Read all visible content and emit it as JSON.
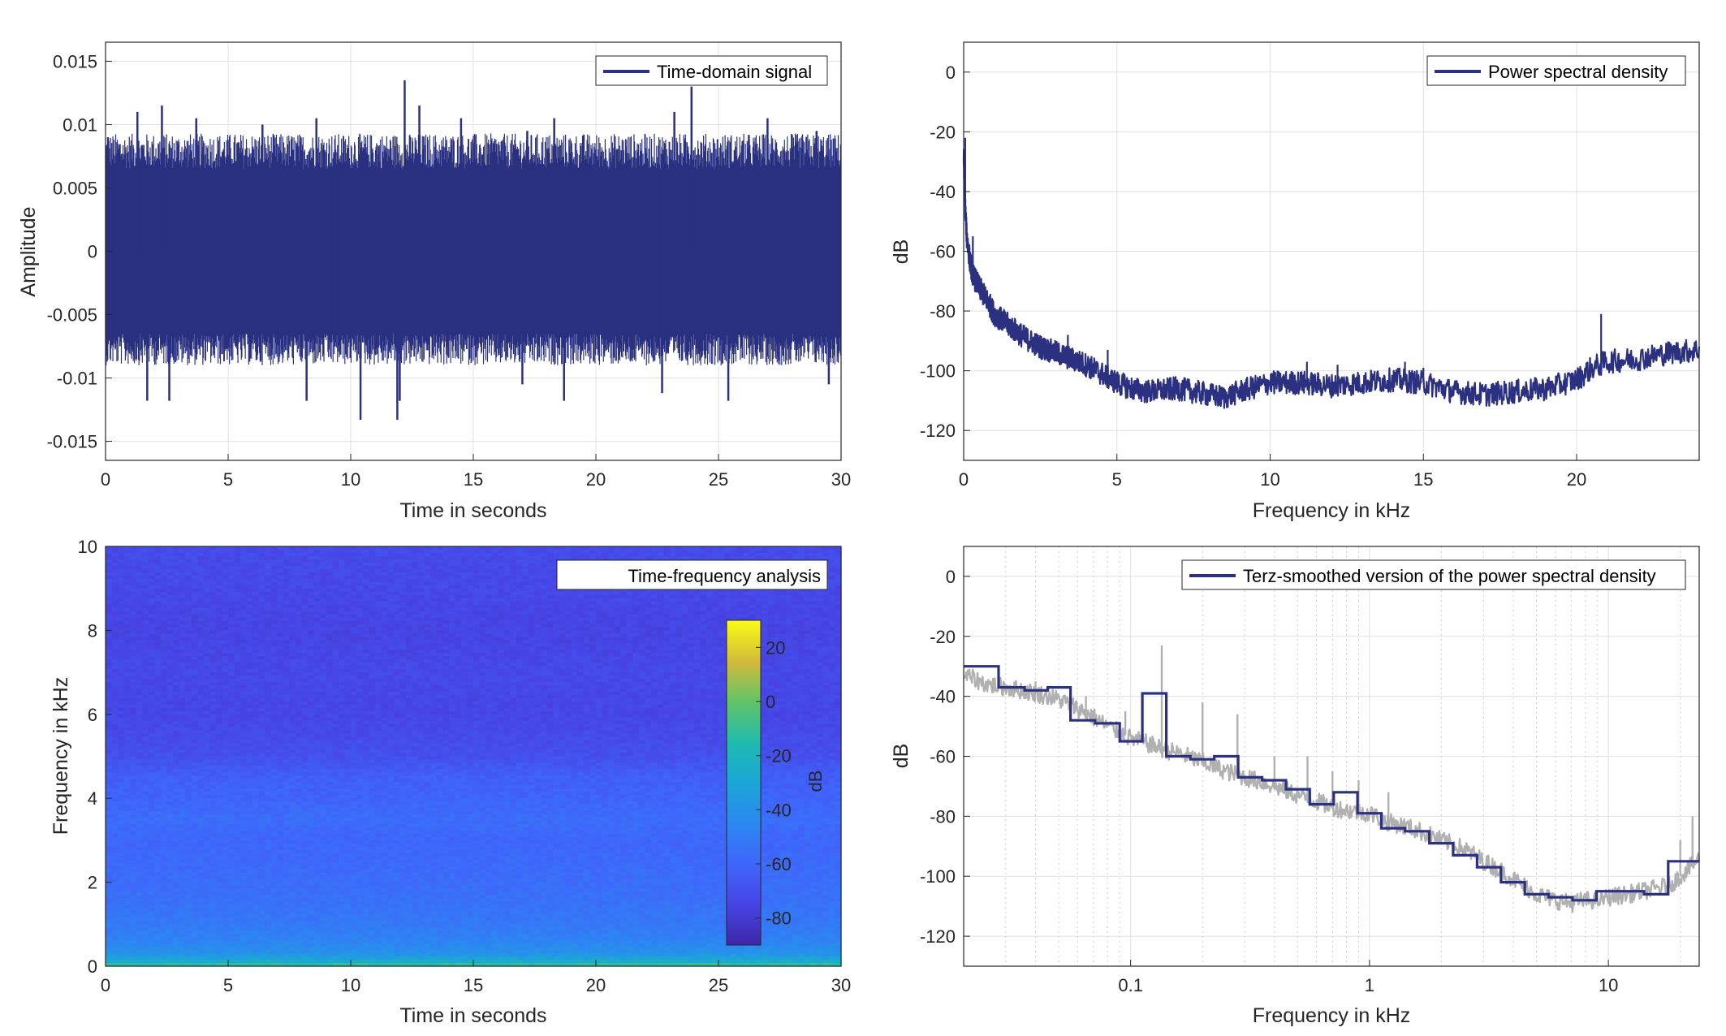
{
  "colors": {
    "series": "#2b3180",
    "raw": "#b0b0b0",
    "grid": "#e0e0e0",
    "axis": "#262626"
  },
  "chart_data": [
    {
      "id": "time",
      "type": "line",
      "legend": "Time-domain signal",
      "legend_position": "top-right",
      "xlabel": "Time in seconds",
      "ylabel": "Amplitude",
      "xlim": [
        0,
        30
      ],
      "ylim": [
        -0.0165,
        0.0165
      ],
      "xticks": [
        0,
        5,
        10,
        15,
        20,
        25,
        30
      ],
      "xticklabels": [
        "0",
        "5",
        "10",
        "15",
        "20",
        "25",
        "30"
      ],
      "yticks": [
        -0.015,
        -0.01,
        -0.005,
        0,
        0.005,
        0.01,
        0.015
      ],
      "yticklabels": [
        "-0.015",
        "-0.01",
        "-0.005",
        "0",
        "0.005",
        "0.01",
        "0.015"
      ],
      "grid": true,
      "envelope": {
        "core_max": 0.006,
        "core_min": -0.006
      },
      "peaks": [
        [
          0.1,
          0.009
        ],
        [
          1.3,
          0.011
        ],
        [
          2.3,
          0.0115
        ],
        [
          3.7,
          0.0105
        ],
        [
          6.4,
          0.01
        ],
        [
          8.6,
          0.0105
        ],
        [
          12.2,
          0.0135
        ],
        [
          12.8,
          0.0115
        ],
        [
          14.5,
          0.0105
        ],
        [
          17.2,
          0.0095
        ],
        [
          18.3,
          0.0105
        ],
        [
          23.2,
          0.011
        ],
        [
          23.9,
          0.013
        ],
        [
          27.0,
          0.0105
        ],
        [
          29.0,
          0.0095
        ]
      ],
      "troughs": [
        [
          1.7,
          -0.0118
        ],
        [
          2.6,
          -0.0118
        ],
        [
          8.2,
          -0.0118
        ],
        [
          10.4,
          -0.0133
        ],
        [
          11.9,
          -0.0133
        ],
        [
          12.0,
          -0.0118
        ],
        [
          17.0,
          -0.0105
        ],
        [
          18.7,
          -0.0118
        ],
        [
          22.7,
          -0.0112
        ],
        [
          25.4,
          -0.0118
        ],
        [
          29.5,
          -0.0105
        ]
      ]
    },
    {
      "id": "psd",
      "type": "line",
      "legend": "Power spectral density",
      "legend_position": "top-right",
      "xlabel": "Frequency in kHz",
      "ylabel": "dB",
      "xlim": [
        0,
        24
      ],
      "ylim": [
        -130,
        10
      ],
      "xticks": [
        0,
        5,
        10,
        15,
        20
      ],
      "xticklabels": [
        "0",
        "5",
        "10",
        "15",
        "20"
      ],
      "yticks": [
        -120,
        -100,
        -80,
        -60,
        -40,
        -20,
        0
      ],
      "yticklabels": [
        "-120",
        "-100",
        "-80",
        "-60",
        "-40",
        "-20",
        "0"
      ],
      "grid": true,
      "x": [
        0,
        0.05,
        0.1,
        0.2,
        0.3,
        0.5,
        0.8,
        1,
        1.5,
        2,
        2.5,
        3,
        3.5,
        4,
        4.5,
        5,
        5.5,
        6,
        7,
        8,
        8.5,
        9,
        10,
        11,
        12,
        13,
        14,
        15,
        16,
        17,
        18,
        19,
        20,
        20.5,
        21,
        22,
        23,
        24
      ],
      "y": [
        -28,
        -45,
        -55,
        -63,
        -68,
        -72,
        -77,
        -81,
        -85,
        -89,
        -92,
        -94,
        -96,
        -98,
        -101,
        -104,
        -106,
        -107,
        -106,
        -108,
        -109,
        -107,
        -104,
        -104,
        -105,
        -104,
        -103,
        -104,
        -107,
        -108,
        -107,
        -106,
        -103,
        -99,
        -97,
        -96,
        -94,
        -93
      ],
      "noise_width": 4,
      "spikes": [
        [
          0.05,
          -22
        ],
        [
          0.3,
          -55
        ],
        [
          3.4,
          -88
        ],
        [
          4.7,
          -93
        ],
        [
          8.2,
          -108
        ],
        [
          11.2,
          -97
        ],
        [
          12.2,
          -98
        ],
        [
          13.3,
          -100
        ],
        [
          14.4,
          -97
        ],
        [
          15.0,
          -99
        ],
        [
          20.8,
          -81
        ]
      ]
    },
    {
      "id": "spectrogram",
      "type": "heatmap",
      "legend": "Time-frequency analysis",
      "legend_position": "top-right",
      "xlabel": "Time in seconds",
      "ylabel": "Frequency in kHz",
      "xlim": [
        0,
        30
      ],
      "ylim": [
        0,
        10
      ],
      "xticks": [
        0,
        5,
        10,
        15,
        20,
        25,
        30
      ],
      "xticklabels": [
        "0",
        "5",
        "10",
        "15",
        "20",
        "25",
        "30"
      ],
      "yticks": [
        0,
        2,
        4,
        6,
        8,
        10
      ],
      "yticklabels": [
        "0",
        "2",
        "4",
        "6",
        "8",
        "10"
      ],
      "colorbar": {
        "label": "dB",
        "range": [
          -90,
          30
        ],
        "ticks": [
          -80,
          -60,
          -40,
          -20,
          0,
          20
        ],
        "ticklabels": [
          "-80",
          "-60",
          "-40",
          "-20",
          "0",
          "20"
        ]
      },
      "profile_freq": [
        0,
        0.1,
        0.3,
        0.6,
        1.0,
        1.5,
        2.0,
        3.0,
        3.5,
        4.0,
        4.5,
        5.0,
        6.0,
        7.0,
        8.0,
        9.0,
        10.0
      ],
      "profile_db": [
        -5,
        -25,
        -40,
        -47,
        -52,
        -55,
        -57,
        -60,
        -57,
        -61,
        -63,
        -70,
        -74,
        -73,
        -75,
        -73,
        -72
      ]
    },
    {
      "id": "terz",
      "type": "line",
      "legend": "Terz-smoothed version of the power spectral density",
      "legend_position": "top-right",
      "xlabel": "Frequency in kHz",
      "ylabel": "dB",
      "xscale": "log",
      "xlim": [
        0.02,
        24
      ],
      "ylim": [
        -130,
        10
      ],
      "xticks": [
        0.1,
        1,
        10
      ],
      "xticklabels": [
        "0.1",
        "1",
        "10"
      ],
      "yticks": [
        -120,
        -100,
        -80,
        -60,
        -40,
        -20,
        0
      ],
      "yticklabels": [
        "-120",
        "-100",
        "-80",
        "-60",
        "-40",
        "-20",
        "0"
      ],
      "grid": true,
      "raw_x": [
        0.02,
        0.025,
        0.03,
        0.04,
        0.05,
        0.06,
        0.07,
        0.08,
        0.09,
        0.1,
        0.12,
        0.14,
        0.16,
        0.2,
        0.25,
        0.3,
        0.4,
        0.5,
        0.6,
        0.7,
        0.8,
        1.0,
        1.2,
        1.5,
        2.0,
        2.5,
        3.0,
        3.5,
        4.0,
        5.0,
        6.0,
        7.0,
        8.0,
        9.0,
        10.0,
        12.0,
        14.0,
        16.0,
        18.0,
        20.0,
        22.0,
        24.0
      ],
      "raw_y": [
        -33,
        -36,
        -37,
        -39,
        -41,
        -44,
        -47,
        -50,
        -52,
        -54,
        -56,
        -58,
        -59,
        -62,
        -65,
        -67,
        -70,
        -73,
        -75,
        -77,
        -78,
        -79,
        -82,
        -84,
        -88,
        -91,
        -95,
        -98,
        -101,
        -106,
        -108,
        -109,
        -108,
        -108,
        -107,
        -106,
        -105,
        -104,
        -103,
        -100,
        -97,
        -94
      ],
      "raw_noise": 3,
      "raw_spikes": [
        [
          0.03,
          -36
        ],
        [
          0.04,
          -35
        ],
        [
          0.065,
          -40
        ],
        [
          0.095,
          -45
        ],
        [
          0.135,
          -23
        ],
        [
          0.2,
          -42
        ],
        [
          0.28,
          -46
        ],
        [
          0.4,
          -60
        ],
        [
          0.55,
          -60
        ],
        [
          0.7,
          -65
        ],
        [
          0.9,
          -68
        ],
        [
          1.2,
          -72
        ],
        [
          20,
          -88
        ],
        [
          22.5,
          -80
        ]
      ],
      "step_edges": [
        0.02,
        0.028,
        0.036,
        0.045,
        0.056,
        0.071,
        0.09,
        0.112,
        0.141,
        0.178,
        0.224,
        0.282,
        0.355,
        0.447,
        0.562,
        0.708,
        0.891,
        1.12,
        1.41,
        1.78,
        2.24,
        2.82,
        3.55,
        4.47,
        5.62,
        7.08,
        8.91,
        11.2,
        14.1,
        17.8,
        24
      ],
      "step_values": [
        -30,
        -37,
        -38,
        -37,
        -48,
        -49,
        -55,
        -39,
        -60,
        -61,
        -60,
        -67,
        -68,
        -71,
        -76,
        -72,
        -79,
        -84,
        -85,
        -89,
        -93,
        -97,
        -102,
        -106,
        -107,
        -108,
        -105,
        -105,
        -106,
        -95
      ]
    }
  ]
}
